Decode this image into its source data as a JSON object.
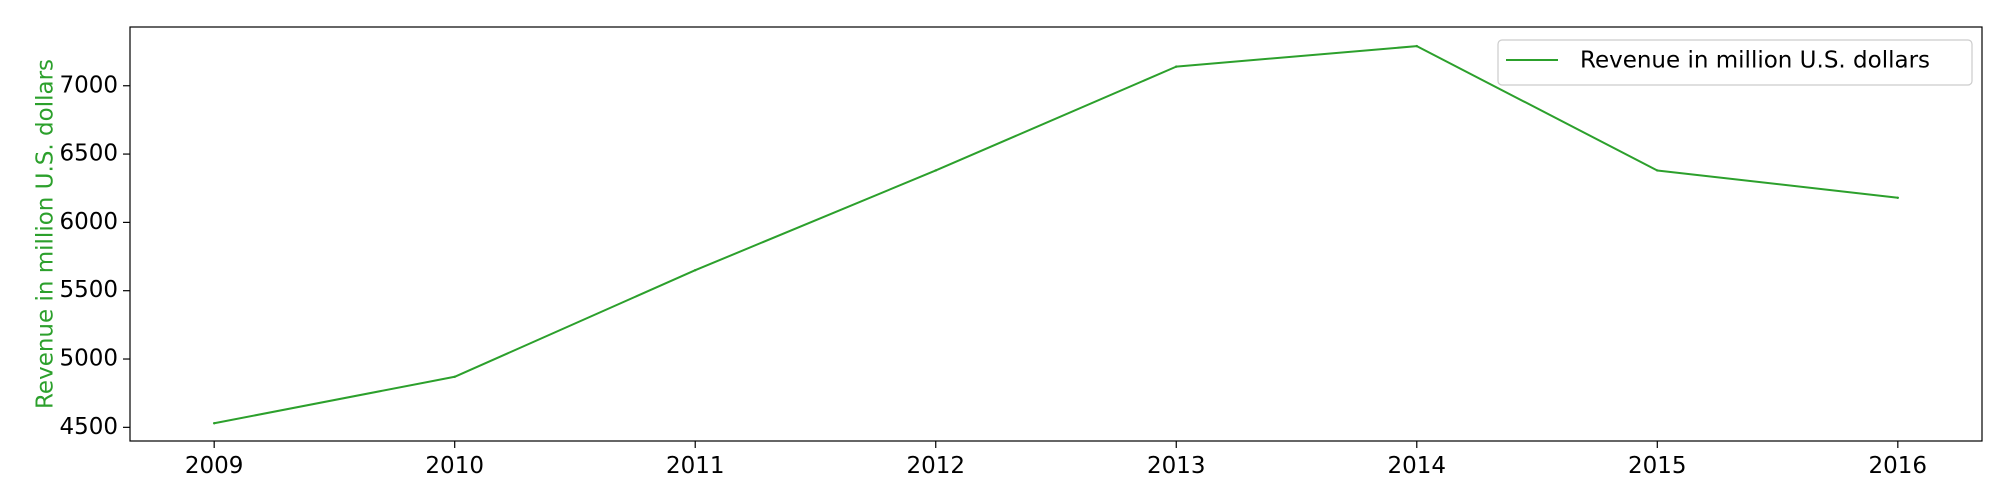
{
  "chart_data": {
    "type": "line",
    "title": "",
    "xlabel": "",
    "ylabel": "Revenue in million U.S. dollars",
    "x": [
      2009,
      2010,
      2011,
      2012,
      2013,
      2014,
      2015,
      2016
    ],
    "series": [
      {
        "name": "Revenue in million U.S. dollars",
        "values": [
          4530,
          4870,
          5650,
          6380,
          7140,
          7290,
          6380,
          6180
        ],
        "color": "#2ca02c"
      }
    ],
    "xticks": [
      "2009",
      "2010",
      "2011",
      "2012",
      "2013",
      "2014",
      "2015",
      "2016"
    ],
    "yticks": [
      "4500",
      "5000",
      "5500",
      "6000",
      "6500",
      "7000"
    ],
    "xlim": [
      2008.65,
      2016.35
    ],
    "ylim": [
      4400,
      7430
    ],
    "grid": false,
    "legend_position": "top-right",
    "ylabel_color": "#2ca02c"
  }
}
